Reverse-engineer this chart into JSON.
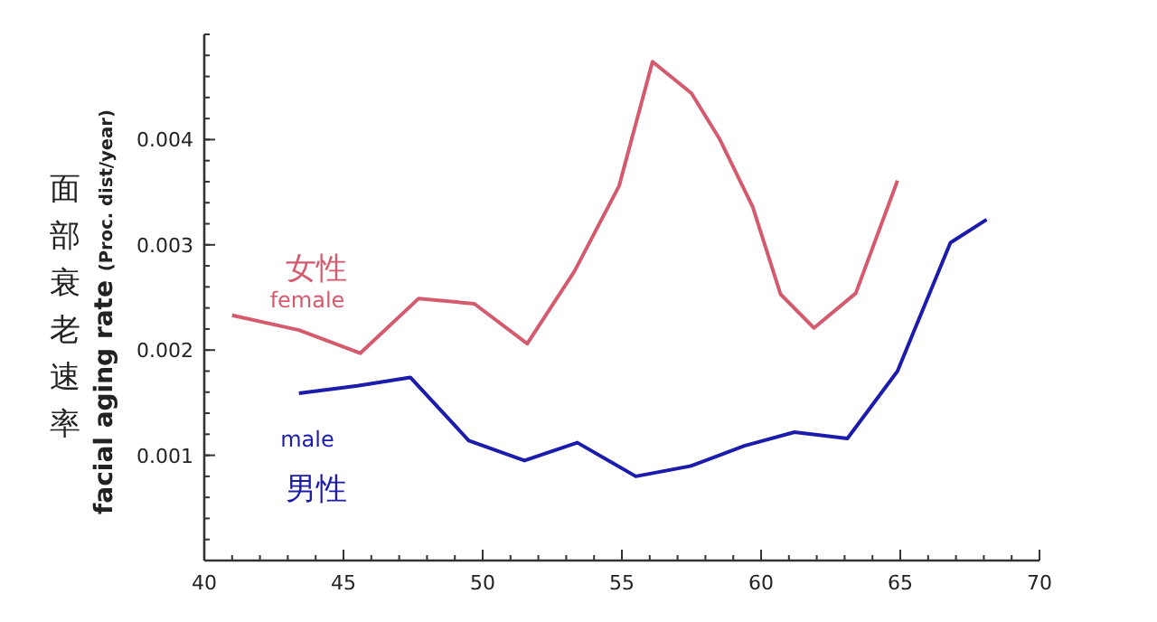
{
  "chart_data": {
    "type": "line",
    "ylabel": "facial aging rate $_{(Proc. dist/year)}$",
    "xlim": [
      40,
      70
    ],
    "ylim": [
      0,
      0.005
    ],
    "xticks": [
      40,
      45,
      50,
      55,
      60,
      65,
      70
    ],
    "yticks": [
      0.001,
      0.002,
      0.003,
      0.004
    ],
    "grid": false,
    "marker": "none",
    "line_style": "solid",
    "annotations": [
      "面部衰老速率",
      "女性",
      "男性"
    ],
    "series": [
      {
        "name": "female",
        "color": "#d45a6e",
        "x": [
          41.0,
          43.4,
          45.6,
          47.7,
          49.7,
          51.6,
          53.3,
          54.9,
          56.1,
          57.5,
          58.5,
          59.7,
          60.7,
          61.9,
          63.4,
          64.9
        ],
        "values": [
          0.00233,
          0.00219,
          0.00197,
          0.00249,
          0.00244,
          0.00206,
          0.00275,
          0.00356,
          0.00474,
          0.00444,
          0.00401,
          0.00336,
          0.00253,
          0.00221,
          0.00254,
          0.00361
        ]
      },
      {
        "name": "male",
        "color": "#1c1cac",
        "x": [
          43.4,
          45.5,
          47.4,
          49.5,
          51.5,
          53.4,
          55.5,
          57.5,
          59.4,
          61.2,
          63.1,
          64.9,
          66.8,
          68.1
        ],
        "values": [
          0.00159,
          0.00166,
          0.00174,
          0.00114,
          0.00095,
          0.00112,
          0.0008,
          0.0009,
          0.00109,
          0.00122,
          0.00116,
          0.0018,
          0.00302,
          0.00324
        ]
      }
    ]
  }
}
